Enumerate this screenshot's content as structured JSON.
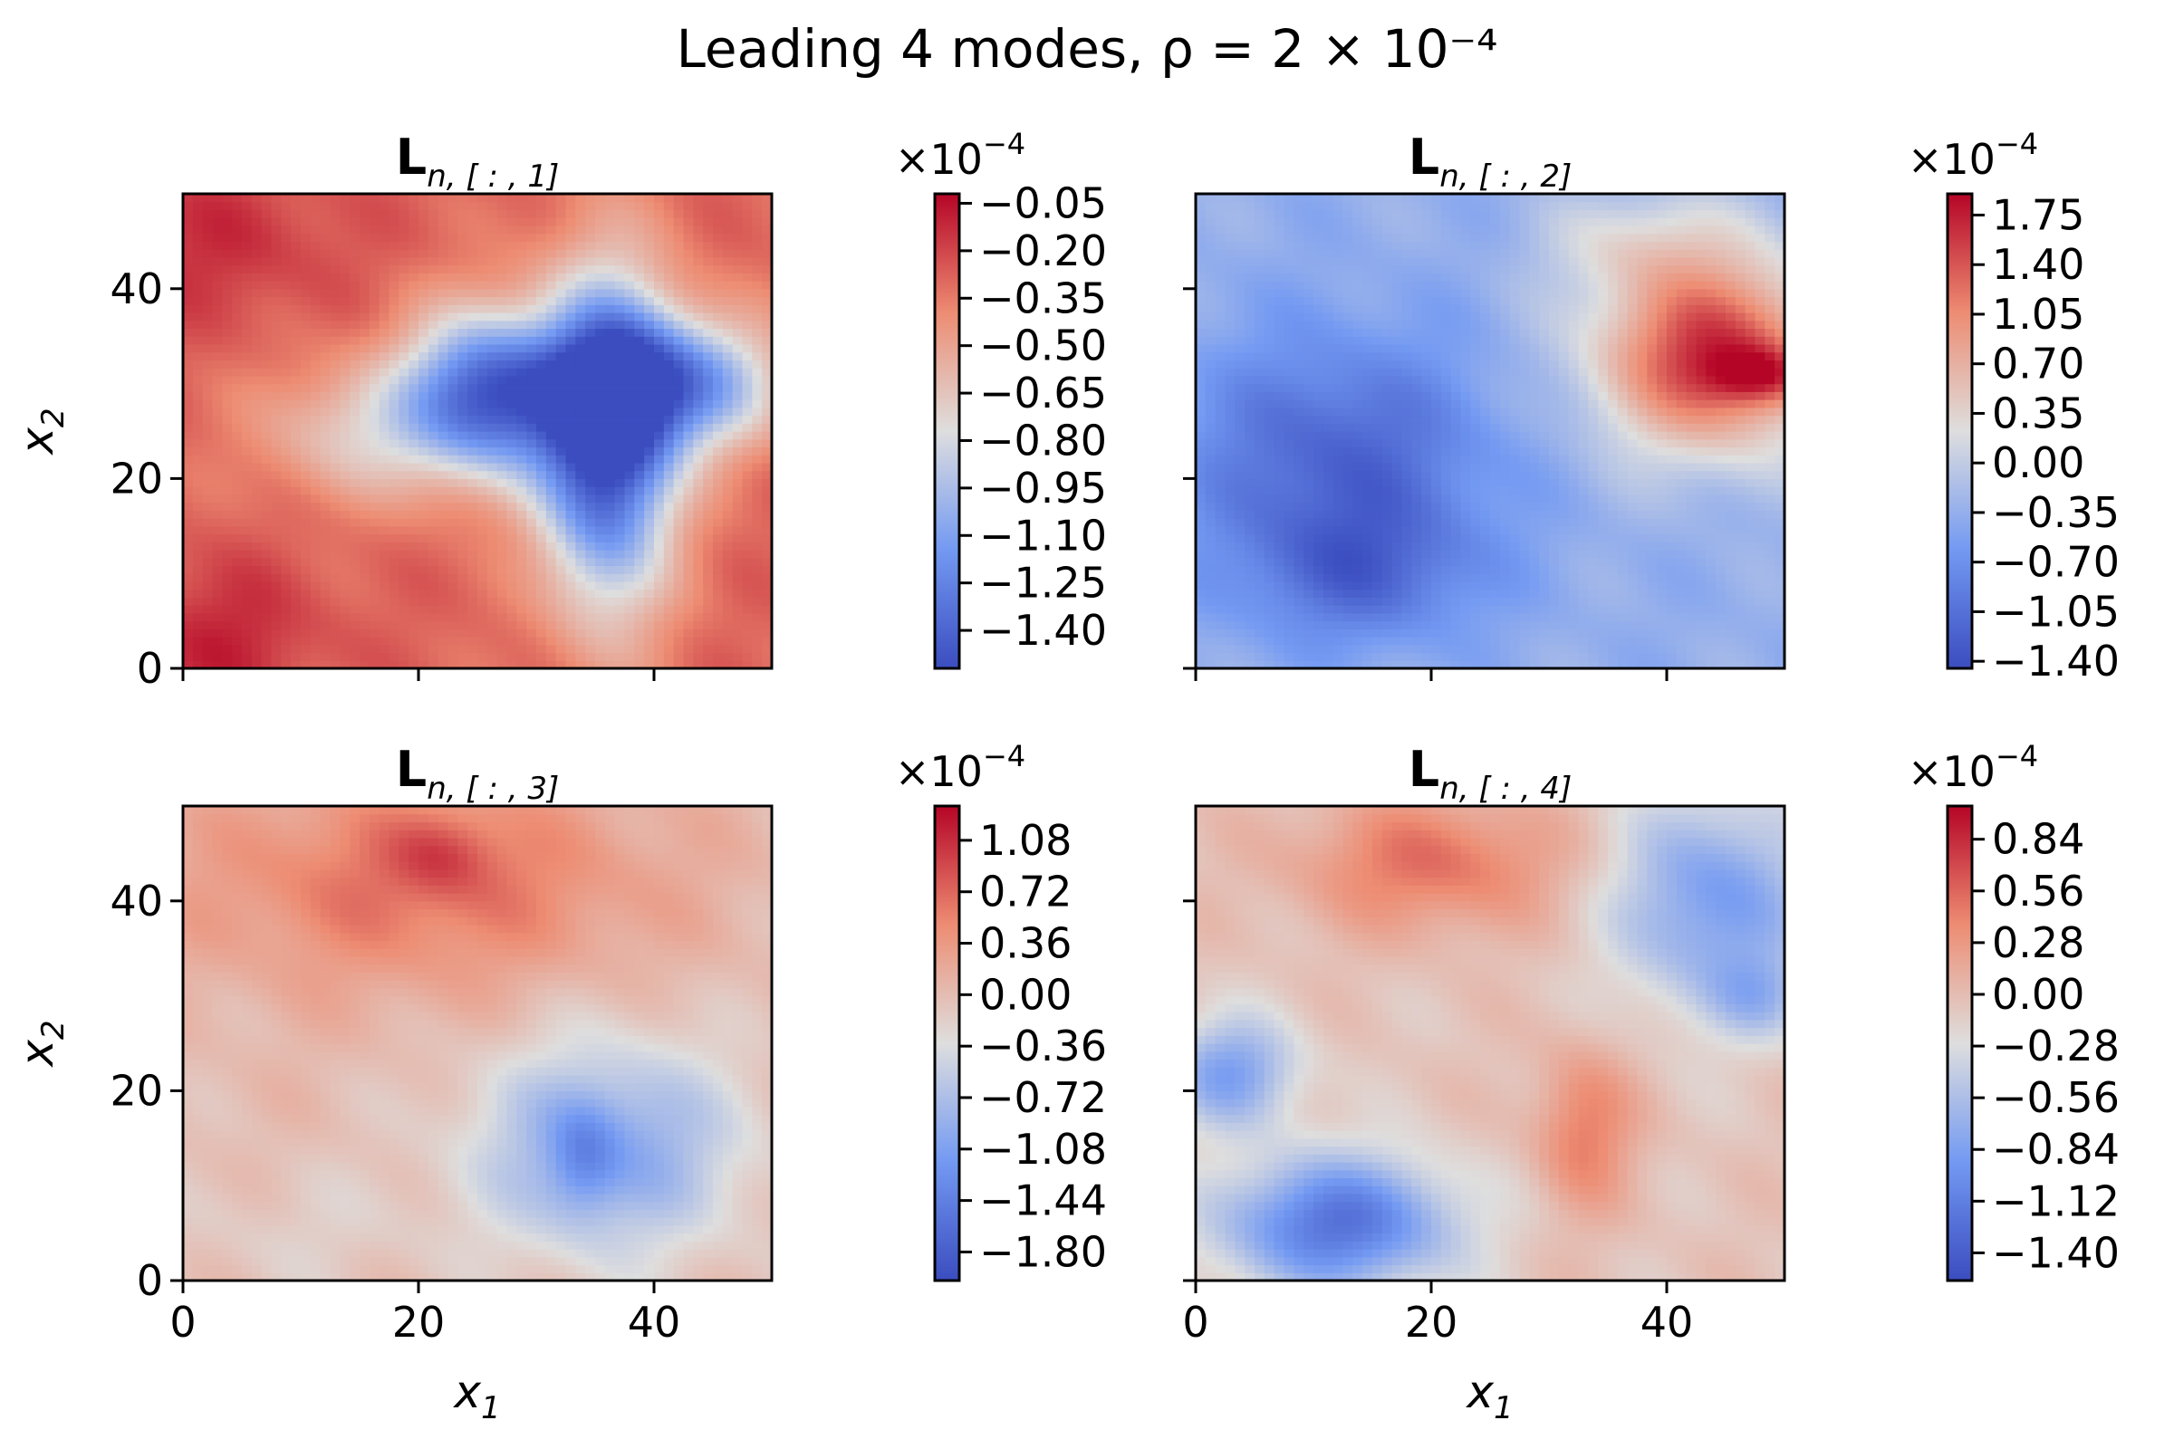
{
  "chart_data": {
    "type": "heatmap",
    "title": "Leading 4 modes, ρ = 2 × 10⁻⁴",
    "colormap": "coolwarm",
    "xlim": [
      0,
      50
    ],
    "ylim": [
      0,
      50
    ],
    "x_ticks": [
      "0",
      "20",
      "40"
    ],
    "y_ticks": [
      "0",
      "20",
      "40"
    ],
    "xlabel": "x",
    "xlabel_sub": "1",
    "ylabel": "x",
    "ylabel_sub": "2",
    "colorbar_multiplier": "×10",
    "colorbar_exponent": "−4",
    "panels": [
      {
        "name": "mode-1",
        "title_main": "L",
        "title_sub": "n, [ : , 1]",
        "cbar_ticks": [
          -0.05,
          -0.2,
          -0.35,
          -0.5,
          -0.65,
          -0.8,
          -0.95,
          -1.1,
          -1.25,
          -1.4
        ],
        "cbar_labels": [
          "−0.05",
          "−0.20",
          "−0.35",
          "−0.50",
          "−0.65",
          "−0.80",
          "−0.95",
          "−1.10",
          "−1.25",
          "−1.40"
        ],
        "vmin": -1.52,
        "vmax": -0.02,
        "field": {
          "base": 0.82,
          "blobs": [
            {
              "x": 26,
              "y": 29,
              "sx": 5,
              "sy": 6,
              "a": -0.75
            },
            {
              "x": 36,
              "y": 24,
              "sx": 4,
              "sy": 12,
              "a": -0.85
            },
            {
              "x": 42,
              "y": 30,
              "sx": 6,
              "sy": 5,
              "a": -0.6
            },
            {
              "x": 15,
              "y": 25,
              "sx": 6,
              "sy": 5,
              "a": -0.25
            },
            {
              "x": 3,
              "y": 3,
              "sx": 6,
              "sy": 6,
              "a": 0.12
            },
            {
              "x": 2,
              "y": 45,
              "sx": 8,
              "sy": 6,
              "a": 0.1
            }
          ]
        }
      },
      {
        "name": "mode-2",
        "title_main": "L",
        "title_sub": "n, [ : , 2]",
        "cbar_ticks": [
          1.75,
          1.4,
          1.05,
          0.7,
          0.35,
          0.0,
          -0.35,
          -0.7,
          -1.05,
          -1.4
        ],
        "cbar_labels": [
          "1.75",
          "1.40",
          "1.05",
          "0.70",
          "0.35",
          "0.00",
          "−0.35",
          "−0.70",
          "−1.05",
          "−1.40"
        ],
        "vmin": -1.45,
        "vmax": 1.9,
        "field": {
          "base": 0.33,
          "blobs": [
            {
              "x": 12,
              "y": 22,
              "sx": 9,
              "sy": 9,
              "a": -0.25
            },
            {
              "x": 14,
              "y": 10,
              "sx": 7,
              "sy": 5,
              "a": -0.18
            },
            {
              "x": 44,
              "y": 33,
              "sx": 7,
              "sy": 7,
              "a": 0.6
            },
            {
              "x": 48,
              "y": 31,
              "sx": 3,
              "sy": 2,
              "a": 0.25
            },
            {
              "x": 38,
              "y": 45,
              "sx": 6,
              "sy": 4,
              "a": 0.15
            }
          ]
        }
      },
      {
        "name": "mode-3",
        "title_main": "L",
        "title_sub": "n, [ : , 3]",
        "cbar_ticks": [
          1.08,
          0.72,
          0.36,
          0.0,
          -0.36,
          -0.72,
          -1.08,
          -1.44,
          -1.8
        ],
        "cbar_labels": [
          "1.08",
          "0.72",
          "0.36",
          "0.00",
          "−0.36",
          "−0.72",
          "−1.08",
          "−1.44",
          "−1.80"
        ],
        "vmin": -2.0,
        "vmax": 1.32,
        "field": {
          "base": 0.6,
          "blobs": [
            {
              "x": 20,
              "y": 42,
              "sx": 14,
              "sy": 8,
              "a": 0.2
            },
            {
              "x": 22,
              "y": 45,
              "sx": 3,
              "sy": 3,
              "a": 0.12
            },
            {
              "x": 36,
              "y": 14,
              "sx": 8,
              "sy": 8,
              "a": -0.3
            },
            {
              "x": 34,
              "y": 13,
              "sx": 2,
              "sy": 4,
              "a": -0.15
            },
            {
              "x": 10,
              "y": 5,
              "sx": 8,
              "sy": 5,
              "a": -0.05
            }
          ]
        }
      },
      {
        "name": "mode-4",
        "title_main": "L",
        "title_sub": "n, [ : , 4]",
        "cbar_ticks": [
          0.84,
          0.56,
          0.28,
          0.0,
          -0.28,
          -0.56,
          -0.84,
          -1.12,
          -1.4
        ],
        "cbar_labels": [
          "0.84",
          "0.56",
          "0.28",
          "0.00",
          "−0.28",
          "−0.56",
          "−0.84",
          "−1.12",
          "−1.40"
        ],
        "vmin": -1.55,
        "vmax": 1.02,
        "field": {
          "base": 0.58,
          "blobs": [
            {
              "x": 12,
              "y": 6,
              "sx": 7,
              "sy": 5,
              "a": -0.45
            },
            {
              "x": 3,
              "y": 22,
              "sx": 4,
              "sy": 4,
              "a": -0.3
            },
            {
              "x": 44,
              "y": 40,
              "sx": 6,
              "sy": 8,
              "a": -0.32
            },
            {
              "x": 48,
              "y": 30,
              "sx": 3,
              "sy": 3,
              "a": -0.15
            },
            {
              "x": 20,
              "y": 44,
              "sx": 8,
              "sy": 5,
              "a": 0.22
            },
            {
              "x": 33,
              "y": 16,
              "sx": 3,
              "sy": 6,
              "a": 0.2
            }
          ]
        }
      }
    ]
  }
}
